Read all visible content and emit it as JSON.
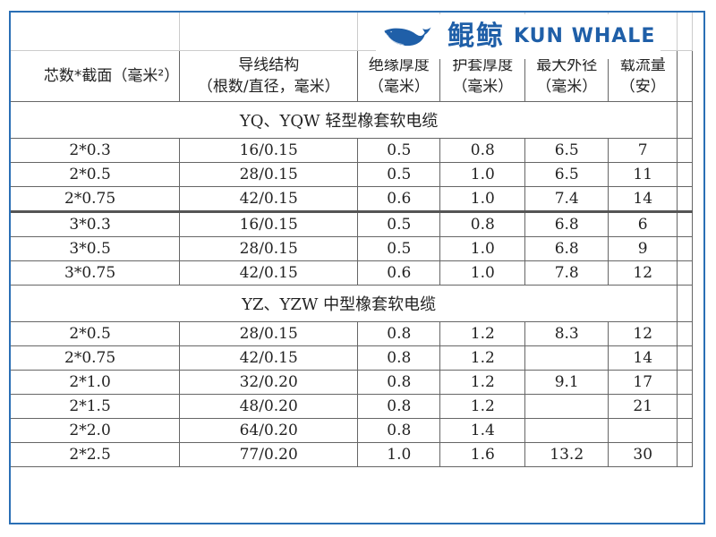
{
  "headers": [
    "芯数*截面（毫米²）",
    "导线结构\n（根数/直径，毫米）",
    "绝缘厚度\n（毫米）",
    "护套厚度\n（毫米）",
    "最大外径\n（毫米）",
    "载流量\n（安）"
  ],
  "sections": [
    {
      "title": "YQ、YQW 轻型橡套软电缆",
      "rows": [
        [
          "2*0.3",
          "16/0.15",
          "0.5",
          "0.8",
          "6.5",
          "7"
        ],
        [
          "2*0.5",
          "28/0.15",
          "0.5",
          "1.0",
          "6.5",
          "11"
        ],
        [
          "2*0.75",
          "42/0.15",
          "0.6",
          "1.0",
          "7.4",
          "14"
        ],
        [
          "3*0.3",
          "16/0.15",
          "0.5",
          "0.8",
          "6.8",
          "6"
        ],
        [
          "3*0.5",
          "28/0.15",
          "0.5",
          "1.0",
          "6.8",
          "9"
        ],
        [
          "3*0.75",
          "42/0.15",
          "0.6",
          "1.0",
          "7.8",
          "12"
        ]
      ]
    },
    {
      "title": "YZ、YZW 中型橡套软电缆",
      "rows": [
        [
          "2*0.5",
          "28/0.15",
          "0.8",
          "1.2",
          "8.3",
          "12"
        ],
        [
          "2*0.75",
          "42/0.15",
          "0.8",
          "1.2",
          "",
          "14"
        ],
        [
          "2*1.0",
          "32/0.20",
          "0.8",
          "1.2",
          "9.1",
          "17"
        ],
        [
          "2*1.5",
          "48/0.20",
          "0.8",
          "1.2",
          "",
          "21"
        ],
        [
          "2*2.0",
          "64/0.20",
          "0.8",
          "1.4",
          "",
          ""
        ],
        [
          "2*2.5",
          "77/0.20",
          "1.0",
          "1.6",
          "13.2",
          "30"
        ]
      ]
    }
  ],
  "logo": {
    "cn": "鲲鲸",
    "en": "KUN WHALE",
    "color": "#1f5fa8",
    "accent": "#2aa84a"
  },
  "colors": {
    "border": "#2a6fb5"
  }
}
